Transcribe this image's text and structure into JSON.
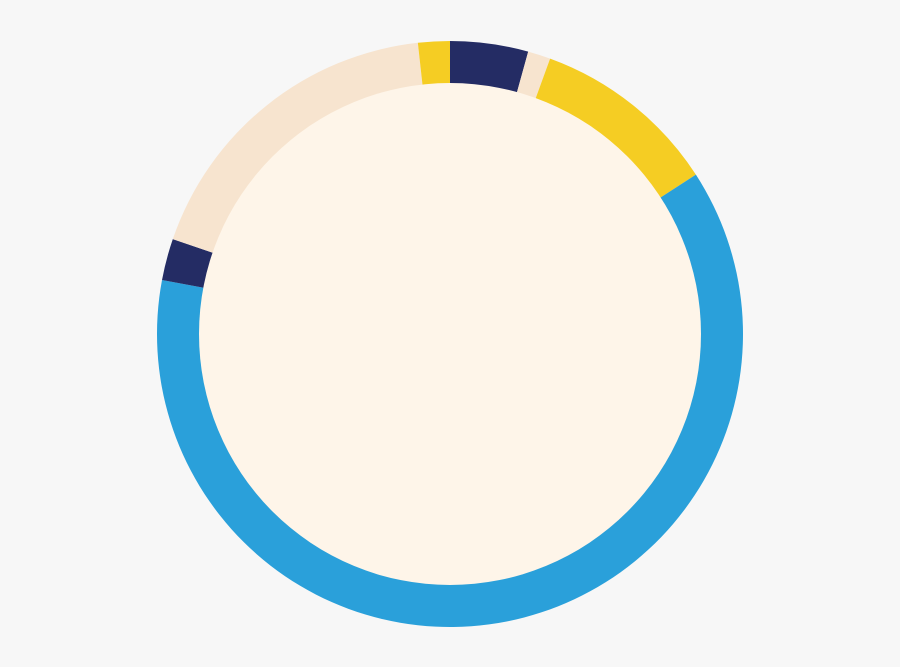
{
  "chart_data": {
    "type": "pie",
    "variant": "donut",
    "title": "",
    "start": "top",
    "direction": "clockwise",
    "values": [
      4.3,
      1.25,
      10.3,
      62.1,
      2.3,
      18.0,
      1.75
    ],
    "colors": [
      "#242c64",
      "#f7e4cf",
      "#f5cd23",
      "#2aa0da",
      "#242c64",
      "#f7e4cf",
      "#f5cd23"
    ],
    "center_fill": "#fef5e9",
    "background": "#f7f7f7",
    "legend": "none"
  }
}
